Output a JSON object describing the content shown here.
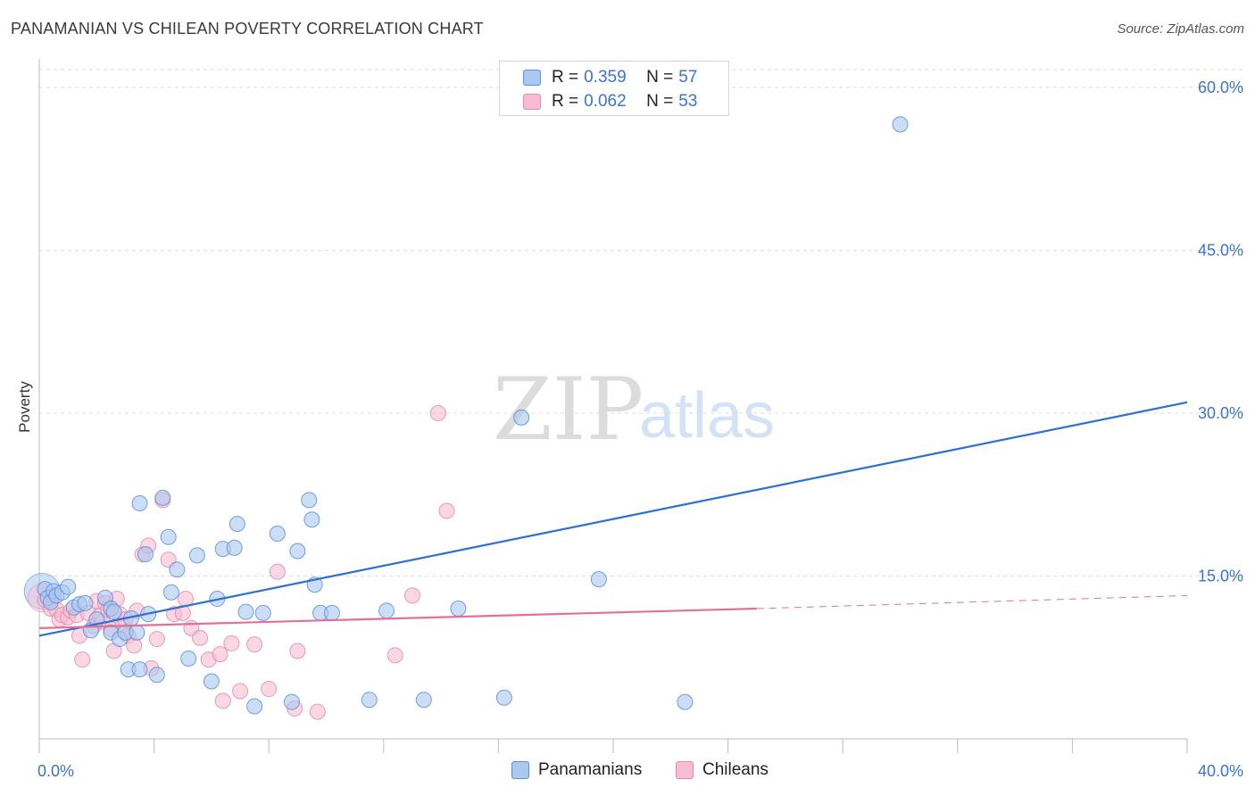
{
  "header": {
    "title": "PANAMANIAN VS CHILEAN POVERTY CORRELATION CHART",
    "source": "Source: ZipAtlas.com"
  },
  "watermark": {
    "zip": "ZIP",
    "atlas": "atlas"
  },
  "legend": {
    "rows": [
      {
        "r_label": "R =",
        "r_value": "0.359",
        "n_label": "N =",
        "n_value": "57"
      },
      {
        "r_label": "R =",
        "r_value": "0.062",
        "n_label": "N =",
        "n_value": "53"
      }
    ]
  },
  "bottom_legend": [
    "Panamanians",
    "Chileans"
  ],
  "colors": {
    "blue_fill": "#aac8f0",
    "blue_stroke": "#5b8fd8",
    "blue_line": "#2f6fcf",
    "pink_fill": "#f7bcd0",
    "pink_stroke": "#e58aab",
    "pink_line": "#e3709a",
    "grid": "#dddddd",
    "tick_text": "#3b74c9"
  },
  "chart_data": {
    "type": "scatter",
    "title": "PANAMANIAN VS CHILEAN POVERTY CORRELATION CHART",
    "xlabel": "",
    "ylabel": "Poverty",
    "xlim": [
      0,
      40
    ],
    "ylim": [
      0,
      60
    ],
    "x_tick_labels": [
      "0.0%",
      "40.0%"
    ],
    "y_ticks": [
      15,
      30,
      45,
      60
    ],
    "y_tick_labels": [
      "15.0%",
      "30.0%",
      "45.0%",
      "60.0%"
    ],
    "grid": true,
    "legend_position": "top-center",
    "series": [
      {
        "name": "Panamanians",
        "r": 0.359,
        "n": 57,
        "trend": {
          "x0": 0,
          "y0": 9.5,
          "x1": 40,
          "y1": 31.0
        },
        "points": [
          [
            0.2,
            13.8
          ],
          [
            0.3,
            13.0
          ],
          [
            0.4,
            12.6
          ],
          [
            0.5,
            13.6
          ],
          [
            0.6,
            13.2
          ],
          [
            0.8,
            13.5
          ],
          [
            1.0,
            14.0
          ],
          [
            1.2,
            12.1
          ],
          [
            1.4,
            12.4
          ],
          [
            1.6,
            12.5
          ],
          [
            1.8,
            10.0
          ],
          [
            2.0,
            11.0
          ],
          [
            2.3,
            13.0
          ],
          [
            2.5,
            12.0
          ],
          [
            2.5,
            9.8
          ],
          [
            2.6,
            11.7
          ],
          [
            2.8,
            9.2
          ],
          [
            3.0,
            9.8
          ],
          [
            3.1,
            6.4
          ],
          [
            3.2,
            11.1
          ],
          [
            3.4,
            9.8
          ],
          [
            3.5,
            6.4
          ],
          [
            3.5,
            21.7
          ],
          [
            3.7,
            17.0
          ],
          [
            3.8,
            11.5
          ],
          [
            4.1,
            5.9
          ],
          [
            4.3,
            22.2
          ],
          [
            4.5,
            18.6
          ],
          [
            4.6,
            13.5
          ],
          [
            4.8,
            15.6
          ],
          [
            5.2,
            7.4
          ],
          [
            5.5,
            16.9
          ],
          [
            6.0,
            5.3
          ],
          [
            6.2,
            12.9
          ],
          [
            6.4,
            17.5
          ],
          [
            6.8,
            17.6
          ],
          [
            6.9,
            19.8
          ],
          [
            7.2,
            11.7
          ],
          [
            7.5,
            3.0
          ],
          [
            7.8,
            11.6
          ],
          [
            8.3,
            18.9
          ],
          [
            8.8,
            3.4
          ],
          [
            9.0,
            17.3
          ],
          [
            9.4,
            22.0
          ],
          [
            9.5,
            20.2
          ],
          [
            9.6,
            14.2
          ],
          [
            9.8,
            11.6
          ],
          [
            10.2,
            11.6
          ],
          [
            11.5,
            3.6
          ],
          [
            12.1,
            11.8
          ],
          [
            13.4,
            3.6
          ],
          [
            14.6,
            12.0
          ],
          [
            16.2,
            3.8
          ],
          [
            16.8,
            29.6
          ],
          [
            19.5,
            14.7
          ],
          [
            22.5,
            3.4
          ],
          [
            30.0,
            56.6
          ]
        ]
      },
      {
        "name": "Chileans",
        "r": 0.062,
        "n": 53,
        "trend": {
          "x0": 0,
          "y0": 10.2,
          "x1": 25,
          "y1": 12.0,
          "dashed_to_x": 40,
          "dashed_to_y": 13.2
        },
        "points": [
          [
            0.2,
            12.8
          ],
          [
            0.4,
            12.0
          ],
          [
            0.5,
            13.2
          ],
          [
            0.6,
            11.9
          ],
          [
            0.7,
            11.0
          ],
          [
            0.8,
            11.4
          ],
          [
            1.0,
            11.2
          ],
          [
            1.1,
            11.8
          ],
          [
            1.3,
            11.4
          ],
          [
            1.4,
            9.5
          ],
          [
            1.5,
            7.3
          ],
          [
            1.7,
            11.6
          ],
          [
            1.9,
            10.4
          ],
          [
            2.0,
            12.7
          ],
          [
            2.1,
            11.3
          ],
          [
            2.2,
            10.8
          ],
          [
            2.3,
            12.5
          ],
          [
            2.4,
            11.9
          ],
          [
            2.5,
            10.1
          ],
          [
            2.6,
            8.1
          ],
          [
            2.7,
            12.9
          ],
          [
            2.8,
            11.5
          ],
          [
            2.9,
            10.5
          ],
          [
            3.0,
            11.0
          ],
          [
            3.1,
            9.5
          ],
          [
            3.3,
            8.6
          ],
          [
            3.4,
            11.8
          ],
          [
            3.6,
            17.0
          ],
          [
            3.8,
            17.8
          ],
          [
            3.9,
            6.5
          ],
          [
            4.1,
            9.2
          ],
          [
            4.3,
            22.0
          ],
          [
            4.5,
            16.5
          ],
          [
            4.7,
            11.5
          ],
          [
            5.0,
            11.6
          ],
          [
            5.1,
            12.9
          ],
          [
            5.3,
            10.2
          ],
          [
            5.6,
            9.3
          ],
          [
            5.9,
            7.3
          ],
          [
            6.3,
            7.8
          ],
          [
            6.4,
            3.5
          ],
          [
            6.7,
            8.8
          ],
          [
            7.0,
            4.4
          ],
          [
            7.5,
            8.7
          ],
          [
            8.0,
            4.6
          ],
          [
            8.3,
            15.4
          ],
          [
            8.9,
            2.8
          ],
          [
            9.0,
            8.1
          ],
          [
            9.7,
            2.5
          ],
          [
            12.4,
            7.7
          ],
          [
            13.0,
            13.2
          ],
          [
            13.9,
            30.0
          ],
          [
            14.2,
            21.0
          ]
        ]
      }
    ]
  }
}
